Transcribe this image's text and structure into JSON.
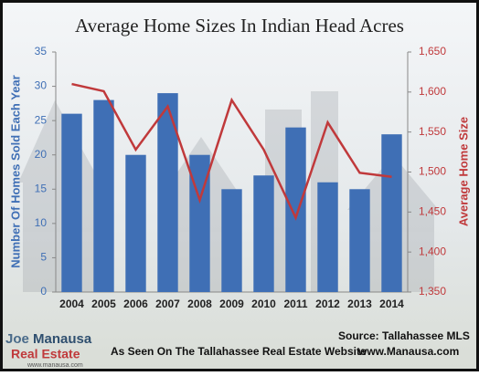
{
  "chart_data": {
    "type": "bar-line",
    "title": "Average Home Sizes In Indian Head Acres",
    "y_label": "Number Of Homes Sold Each Year",
    "y2_label": "Average Home Size",
    "categories": [
      "2004",
      "2005",
      "2006",
      "2007",
      "2008",
      "2009",
      "2010",
      "2011",
      "2012",
      "2013",
      "2014"
    ],
    "series": [
      {
        "name": "Number Of Homes Sold Each Year",
        "type": "bar",
        "color": "#3f6fb5",
        "values": [
          26,
          28,
          20,
          29,
          20,
          15,
          17,
          24,
          16,
          15,
          23
        ]
      },
      {
        "name": "Average Home Size",
        "type": "line",
        "axis": "y2",
        "color": "#c0393b",
        "values": [
          1610,
          1601,
          1528,
          1582,
          1465,
          1590,
          1528,
          1443,
          1562,
          1499,
          1494
        ]
      }
    ],
    "ylim": [
      0,
      35
    ],
    "yticks": [
      0,
      5,
      10,
      15,
      20,
      25,
      30,
      35
    ],
    "y2lim": [
      1350,
      1650
    ],
    "y2ticks": [
      {
        "value": 1350,
        "label": "1,350"
      },
      {
        "value": 1400,
        "label": "1,400"
      },
      {
        "value": 1450,
        "label": "1,450"
      },
      {
        "value": 1500,
        "label": "1,500"
      },
      {
        "value": 1550,
        "label": "1,550"
      },
      {
        "value": 1600,
        "label": "1,600"
      },
      {
        "value": 1650,
        "label": "1,650"
      }
    ]
  },
  "footer": {
    "source": "Source: Tallahassee MLS",
    "seen_on": "As Seen On The Tallahassee Real Estate Website",
    "website": "www.Manausa.com"
  },
  "logo": {
    "first": "Joe",
    "last": "Manausa",
    "sub": "Real Estate",
    "url": "www.manausa.com"
  }
}
